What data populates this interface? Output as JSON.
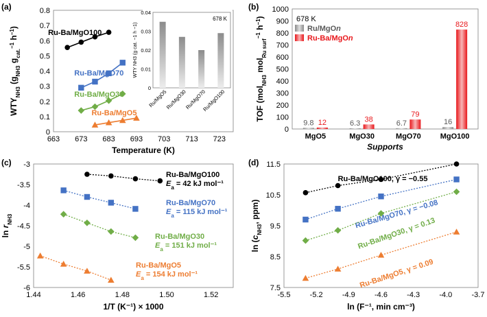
{
  "colors": {
    "black": "#000000",
    "blue": "#4472C4",
    "green": "#70AD47",
    "orange": "#ED7D31",
    "red": "#E8171B",
    "gray": "#A6A6A6",
    "gridline": "#D9D9D9"
  },
  "chart_data": [
    {
      "panel": "(a)",
      "type": "line",
      "xlabel": "Temperature (K)",
      "ylabel_main": "WTY",
      "ylabel_sub": "NH3",
      "ylabel_rest": " (g",
      "ylabel_sub2": "NH3",
      "ylabel_rest2": " g",
      "ylabel_sub3": "cat.",
      "ylabel_sup": "−1",
      "ylabel_rest3": " h",
      "ylabel_sup2": "−1",
      "ylabel_end": ")",
      "xlim": [
        663,
        728
      ],
      "ylim": [
        0,
        0.8
      ],
      "xticks": [
        "663",
        "673",
        "683",
        "693",
        "703",
        "713",
        "723"
      ],
      "yticks": [
        "0",
        "0.1",
        "0.2",
        "0.3",
        "0.4",
        "0.5",
        "0.6",
        "0.7",
        "0.8"
      ],
      "series": [
        {
          "name": "Ru-Ba/MgO100",
          "color": "#000000",
          "marker": "circle",
          "x": [
            668,
            673,
            678,
            683
          ],
          "y": [
            0.555,
            0.59,
            0.625,
            0.655
          ]
        },
        {
          "name": "Ru-Ba/MgO70",
          "color": "#4472C4",
          "marker": "square",
          "x": [
            673,
            678,
            683,
            688
          ],
          "y": [
            0.29,
            0.33,
            0.385,
            0.455
          ]
        },
        {
          "name": "Ru-Ba/MgO30",
          "color": "#70AD47",
          "marker": "diamond",
          "x": [
            673,
            678,
            683,
            688
          ],
          "y": [
            0.14,
            0.165,
            0.205,
            0.25
          ]
        },
        {
          "name": "Ru-Ba/MgO5",
          "color": "#ED7D31",
          "marker": "triangle",
          "x": [
            678,
            683,
            688,
            693
          ],
          "y": [
            0.045,
            0.06,
            0.075,
            0.09
          ]
        }
      ],
      "inset": {
        "type": "bar",
        "label": "678 K",
        "ylabel": "WTY",
        "ylabel_full": "WTY NH3 (g cat. −1 h −1)",
        "ylim": [
          0,
          0.04
        ],
        "yticks": [
          "0",
          "0.01",
          "0.02",
          "0.03",
          "0.04"
        ],
        "categories": [
          "Ru/MgO5",
          "Ru/MgO30",
          "Ru/MgO70",
          "Ru/MgO100"
        ],
        "values": [
          0.035,
          0.027,
          0.02,
          0.029
        ]
      }
    },
    {
      "panel": "(b)",
      "type": "bar",
      "label": "678 K",
      "xlabel": "Supports",
      "ylabel": "TOF (mol NH3 mol Ru surf −1 h −1)",
      "ylim": [
        0,
        1000
      ],
      "yticks": [
        "0",
        "100",
        "200",
        "300",
        "400",
        "500",
        "600",
        "700",
        "800",
        "900",
        "1000"
      ],
      "categories": [
        "MgO5",
        "MgO30",
        "MgO70",
        "MgO100"
      ],
      "series": [
        {
          "name": "Ru/MgOn",
          "color": "#A6A6A6",
          "values": [
            9.8,
            6.3,
            6.7,
            16
          ],
          "labels": [
            "9.8",
            "6.3",
            "6.7",
            "16"
          ]
        },
        {
          "name": "Ru-Ba/MgOn",
          "color": "#E8171B",
          "values": [
            12,
            38,
            79,
            828
          ],
          "labels": [
            "12",
            "38",
            "79",
            "828"
          ]
        }
      ],
      "legend": [
        {
          "prefix": "Ru/MgO",
          "suffix": "n"
        },
        {
          "prefix": "Ru-Ba/MgO",
          "suffix": "n"
        }
      ]
    },
    {
      "panel": "(c)",
      "type": "scatter",
      "xlabel": "1/T (K⁻¹) × 1000",
      "ylabel": "ln r NH3",
      "xlim": [
        1.44,
        1.53
      ],
      "ylim": [
        -6,
        -3
      ],
      "xticks": [
        "1.44",
        "1.46",
        "1.48",
        "1.50",
        "1.52"
      ],
      "yticks": [
        "-3",
        "-3.5",
        "-4",
        "-4.5",
        "-5",
        "-5.5",
        "-6"
      ],
      "series": [
        {
          "name": "Ru-Ba/MgO100",
          "ea": "= 42 kJ mol⁻¹",
          "color": "#000000",
          "marker": "circle",
          "x": [
            1.4641,
            1.4749,
            1.4859,
            1.497
          ],
          "y": [
            -3.25,
            -3.29,
            -3.36,
            -3.41
          ]
        },
        {
          "name": "Ru-Ba/MgO70",
          "ea": "= 115 kJ mol⁻¹",
          "color": "#4472C4",
          "marker": "square",
          "x": [
            1.4535,
            1.4641,
            1.4749,
            1.4859
          ],
          "y": [
            -3.64,
            -3.8,
            -3.94,
            -4.09
          ]
        },
        {
          "name": "Ru-Ba/MgO30",
          "ea": "= 151 kJ mol⁻¹",
          "color": "#70AD47",
          "marker": "diamond",
          "x": [
            1.4535,
            1.4641,
            1.4749,
            1.4859
          ],
          "y": [
            -4.22,
            -4.43,
            -4.64,
            -4.79
          ]
        },
        {
          "name": "Ru-Ba/MgO5",
          "ea": "= 154 kJ mol⁻¹",
          "color": "#ED7D31",
          "marker": "triangle",
          "x": [
            1.443,
            1.4535,
            1.4641,
            1.4749
          ],
          "y": [
            -5.23,
            -5.43,
            -5.6,
            -5.82
          ]
        }
      ]
    },
    {
      "panel": "(d)",
      "type": "scatter",
      "xlabel": "ln (F⁻¹, min cm⁻³)",
      "ylabel": "ln (c NH3, ppm)",
      "xlim": [
        -5.5,
        -3.7
      ],
      "ylim": [
        7.5,
        11.5
      ],
      "xticks": [
        "-5.5",
        "-5.2",
        "-4.9",
        "-4.6",
        "-4.3",
        "-4.0",
        "-3.7"
      ],
      "yticks": [
        "7.5",
        "8.5",
        "9.5",
        "10.5",
        "11.5"
      ],
      "series": [
        {
          "name": "Ru-Ba/MgO100, γ = −0.55",
          "color": "#000000",
          "marker": "circle",
          "x": [
            -5.3,
            -5.0,
            -4.6,
            -3.9
          ],
          "y": [
            10.57,
            10.8,
            11.0,
            11.5
          ]
        },
        {
          "name": "Ru-Ba/MgO70, γ = −0.08",
          "color": "#4472C4",
          "marker": "square",
          "x": [
            -5.3,
            -5.0,
            -4.6,
            -3.9
          ],
          "y": [
            9.7,
            10.05,
            10.45,
            11.0
          ]
        },
        {
          "name": "Ru-Ba/MgO30, γ = 0.13",
          "color": "#70AD47",
          "marker": "diamond",
          "x": [
            -5.3,
            -5.0,
            -4.6,
            -3.9
          ],
          "y": [
            9.02,
            9.35,
            9.9,
            10.6
          ]
        },
        {
          "name": "Ru-Ba/MgO5, γ = 0.09",
          "color": "#ED7D31",
          "marker": "triangle",
          "x": [
            -5.3,
            -5.0,
            -4.6,
            -3.9
          ],
          "y": [
            7.8,
            8.1,
            8.55,
            9.3
          ]
        }
      ]
    }
  ],
  "labels": {
    "c_ea_prefix": "E",
    "c_ea_sub": "a"
  }
}
